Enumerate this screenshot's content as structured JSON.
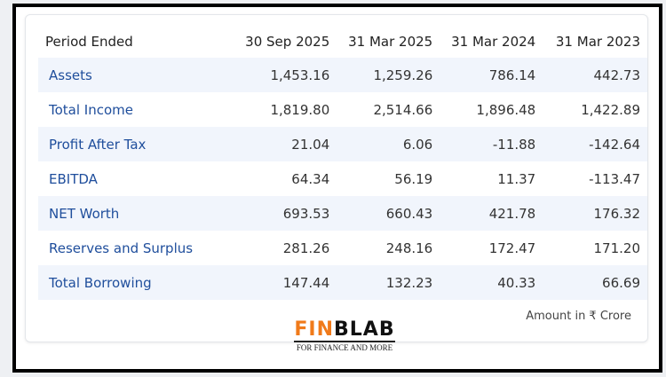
{
  "table": {
    "header": [
      "Period Ended",
      "30 Sep 2025",
      "31 Mar 2025",
      "31 Mar 2024",
      "31 Mar 2023"
    ],
    "rows": [
      [
        "Assets",
        "1,453.16",
        "1,259.26",
        "786.14",
        "442.73"
      ],
      [
        "Total Income",
        "1,819.80",
        "2,514.66",
        "1,896.48",
        "1,422.89"
      ],
      [
        "Profit After Tax",
        "21.04",
        "6.06",
        "-11.88",
        "-142.64"
      ],
      [
        "EBITDA",
        "64.34",
        "56.19",
        "11.37",
        "-113.47"
      ],
      [
        "NET Worth",
        "693.53",
        "660.43",
        "421.78",
        "176.32"
      ],
      [
        "Reserves and Surplus",
        "281.26",
        "248.16",
        "172.47",
        "171.20"
      ],
      [
        "Total Borrowing",
        "147.44",
        "132.23",
        "40.33",
        "66.69"
      ]
    ],
    "note": "Amount in ₹ Crore"
  },
  "logo": {
    "accent": "FIN",
    "rest": "BLAB",
    "tagline": "FOR FINANCE AND MORE"
  }
}
